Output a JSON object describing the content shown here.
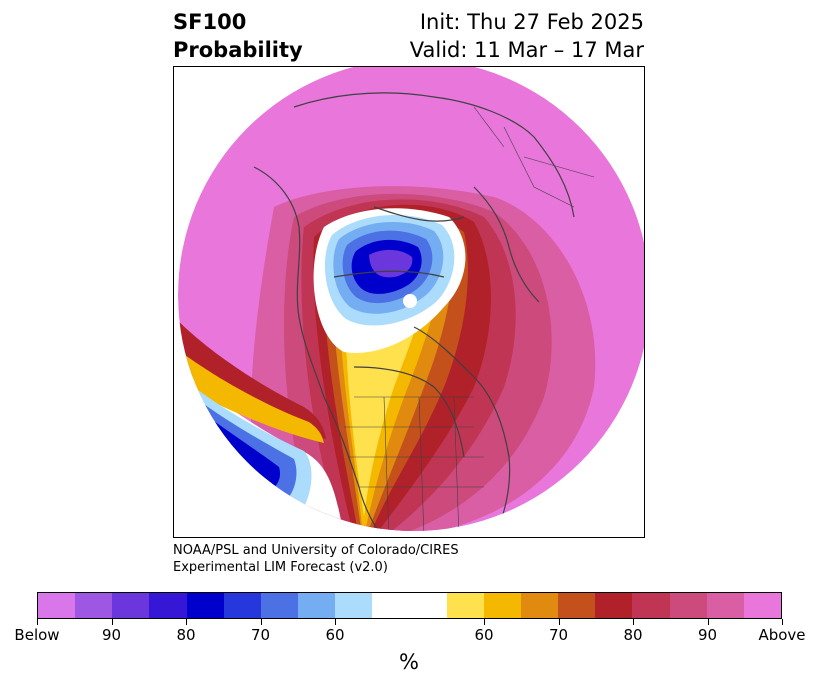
{
  "header": {
    "product_line1": "SF100",
    "product_line2": "Probability",
    "init_label": "Init: Thu 27 Feb 2025",
    "valid_label": "Valid: 11 Mar – 17 Mar"
  },
  "credit": {
    "line1": "NOAA/PSL and University of Colorado/CIRES",
    "line2": "Experimental LIM Forecast (v2.0)"
  },
  "colorbar": {
    "colors": [
      "#d876ea",
      "#9d57e3",
      "#6b37dc",
      "#3617d5",
      "#0000cc",
      "#2638db",
      "#4c71e5",
      "#74adf1",
      "#acdcfb",
      "#ffffff",
      "#ffe14d",
      "#f5b800",
      "#e08a10",
      "#c4501b",
      "#b1212a",
      "#c03553",
      "#cc4a7c",
      "#d95ea4",
      "#e876db"
    ],
    "tick_labels": [
      "Below",
      "90",
      "80",
      "70",
      "60",
      "60",
      "70",
      "80",
      "90",
      "Above"
    ],
    "units": "%"
  },
  "map": {
    "background_color": "#e876db",
    "blue_core": "#0000cc",
    "red_core": "#b1212a"
  }
}
